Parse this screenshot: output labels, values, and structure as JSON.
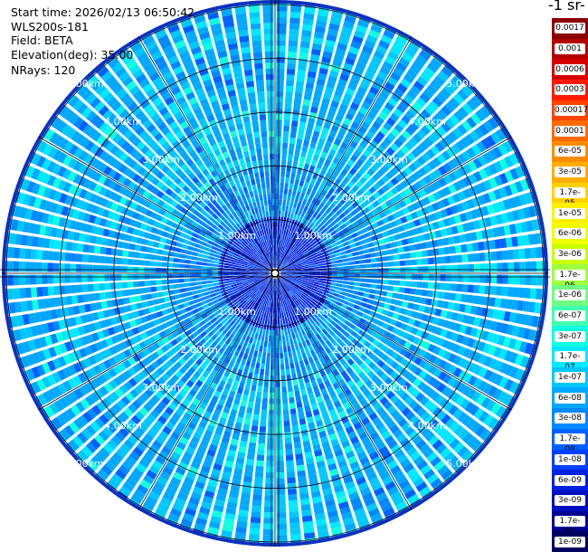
{
  "info": {
    "start_time": "Start time: 2026/02/13 06:50:42",
    "instrument": "WLS200s-181",
    "field": "Field: BETA",
    "elevation": "Elevation(deg): 35.00",
    "nrays": "NRays: 120"
  },
  "colorbar": {
    "title": "-1 sr-",
    "labels": [
      "0.0017",
      "0.001",
      "0.0006",
      "0.0003",
      "0.00017",
      "0.0001",
      "6e-05",
      "3e-05",
      "1.7e-05",
      "1e-05",
      "6e-06",
      "3e-06",
      "1.7e-06",
      "1e-06",
      "6e-07",
      "3e-07",
      "1.7e-07",
      "1e-07",
      "6e-08",
      "3e-08",
      "1.7e-08",
      "1e-08",
      "6e-09",
      "3e-09",
      "1.7e-09",
      "1e-09"
    ],
    "colors": [
      "#8b0000",
      "#b20000",
      "#d60000",
      "#ff1a00",
      "#ff4500",
      "#ff6a00",
      "#ff8c00",
      "#ffae00",
      "#ffd000",
      "#fff000",
      "#f0ff00",
      "#c8ff00",
      "#a0ff40",
      "#70ff80",
      "#40ffb0",
      "#10ffe0",
      "#00e8ff",
      "#00c8ff",
      "#00a8ff",
      "#0088ff",
      "#0060ff",
      "#0040ff",
      "#0020e0",
      "#0010c0",
      "#000090",
      "#000060"
    ]
  },
  "chart_data": {
    "type": "heatmap",
    "projection": "polar PPI scan",
    "nrays": 120,
    "range_rings_km": [
      1,
      2,
      3,
      4,
      5
    ],
    "ring_labels": [
      "1.00km",
      "2.00km",
      "3.00km",
      "4.00km",
      "5.00km"
    ],
    "colorscale": "log backscatter (sr-1)",
    "value_range": [
      1e-09,
      0.0017
    ],
    "dominant_values": {
      "inner_1km": "1e-08 to 3e-08",
      "1km_to_5km": "1e-07 to 1.7e-07"
    }
  }
}
